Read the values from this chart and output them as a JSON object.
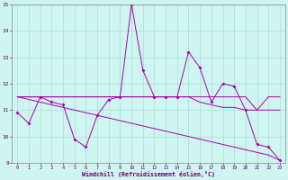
{
  "xlabel": "Windchill (Refroidissement éolien,°C)",
  "xlim": [
    -0.5,
    23.5
  ],
  "ylim": [
    9,
    15
  ],
  "yticks": [
    9,
    10,
    11,
    12,
    13,
    14,
    15
  ],
  "xticks": [
    0,
    1,
    2,
    3,
    4,
    5,
    6,
    7,
    8,
    9,
    10,
    11,
    12,
    13,
    14,
    15,
    16,
    17,
    18,
    19,
    20,
    21,
    22,
    23
  ],
  "bg_color": "#cef5f0",
  "grid_color": "#aadddd",
  "line_color": "#aa00aa",
  "series": [
    [
      10.9,
      10.5,
      11.5,
      11.3,
      11.2,
      9.9,
      9.6,
      10.8,
      11.4,
      11.5,
      15.0,
      12.5,
      11.5,
      11.5,
      11.5,
      13.2,
      12.6,
      11.3,
      12.0,
      11.9,
      11.0,
      9.7,
      9.6,
      9.1
    ],
    [
      11.5,
      11.5,
      11.5,
      11.5,
      11.5,
      11.5,
      11.5,
      11.5,
      11.5,
      11.5,
      11.5,
      11.5,
      11.5,
      11.5,
      11.5,
      11.5,
      11.5,
      11.5,
      11.5,
      11.5,
      11.5,
      11.0,
      11.5,
      11.5
    ],
    [
      11.5,
      11.5,
      11.5,
      11.5,
      11.5,
      11.5,
      11.5,
      11.5,
      11.5,
      11.5,
      11.5,
      11.5,
      11.5,
      11.5,
      11.5,
      11.5,
      11.3,
      11.2,
      11.1,
      11.1,
      11.0,
      11.0,
      11.0,
      11.0
    ],
    [
      11.5,
      11.4,
      11.3,
      11.2,
      11.1,
      11.0,
      10.9,
      10.8,
      10.7,
      10.6,
      10.5,
      10.4,
      10.3,
      10.2,
      10.1,
      10.0,
      9.9,
      9.8,
      9.7,
      9.6,
      9.5,
      9.4,
      9.3,
      9.1
    ]
  ],
  "markers": [
    true,
    false,
    false,
    false
  ]
}
